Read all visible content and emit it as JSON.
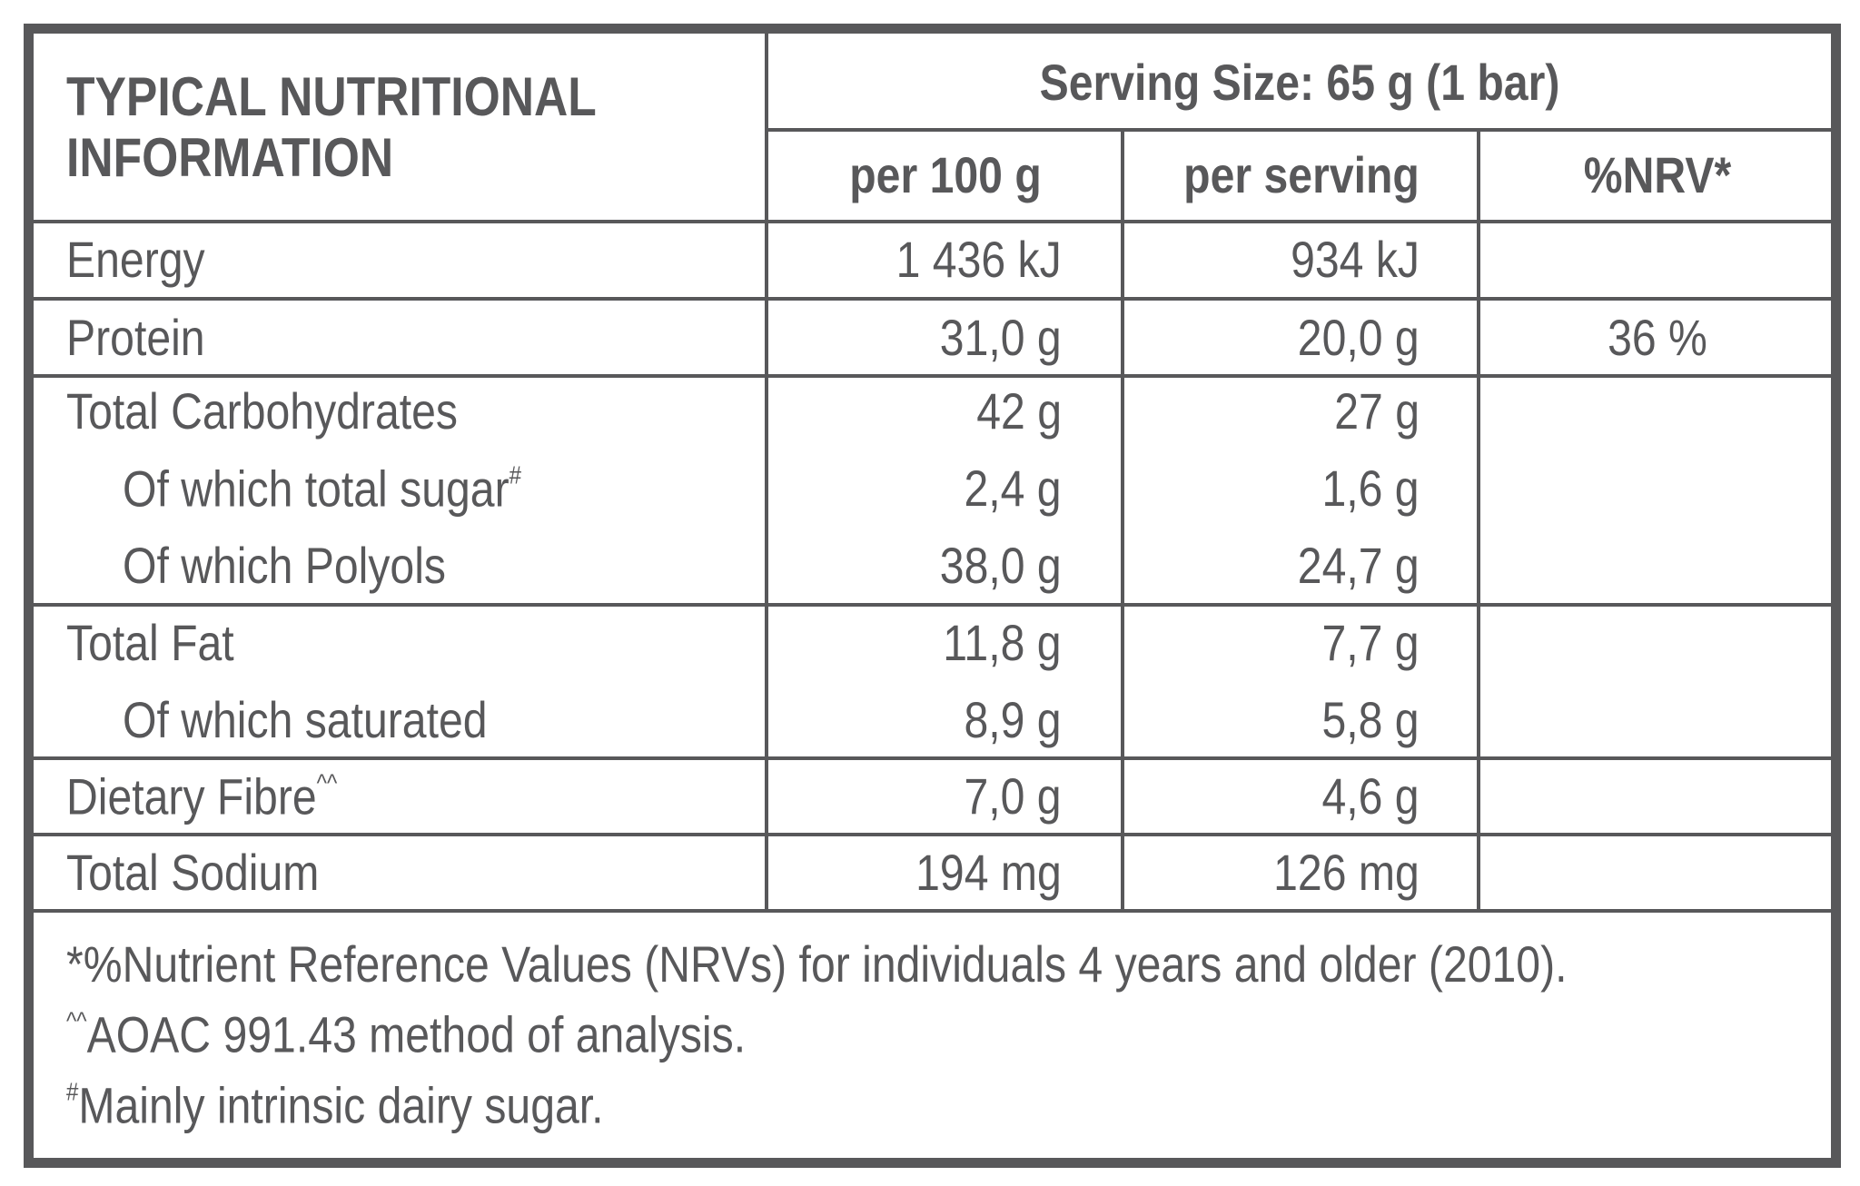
{
  "header": {
    "title_line1": "TYPICAL NUTRITIONAL",
    "title_line2": "INFORMATION",
    "serving_size": "Serving Size: 65 g (1 bar)",
    "columns": [
      "per 100 g",
      "per serving",
      "%NRV*"
    ]
  },
  "rows": [
    {
      "label": "Energy",
      "sup": "",
      "indent": false,
      "per100": "1 436 kJ",
      "serving": "934 kJ",
      "nrv": ""
    },
    {
      "label": "Protein",
      "sup": "",
      "indent": false,
      "per100": "31,0 g",
      "serving": "20,0 g",
      "nrv": "36 %"
    },
    {
      "label": "Total Carbohydrates",
      "sup": "",
      "indent": false,
      "per100": "42 g",
      "serving": "27 g",
      "nrv": ""
    },
    {
      "label": "Of which total sugar",
      "sup": "#",
      "indent": true,
      "per100": "2,4 g",
      "serving": "1,6 g",
      "nrv": ""
    },
    {
      "label": "Of which Polyols",
      "sup": "",
      "indent": true,
      "per100": "38,0 g",
      "serving": "24,7 g",
      "nrv": ""
    },
    {
      "label": "Total Fat",
      "sup": "",
      "indent": false,
      "per100": "11,8 g",
      "serving": "7,7 g",
      "nrv": ""
    },
    {
      "label": "Of which saturated",
      "sup": "",
      "indent": true,
      "per100": "8,9 g",
      "serving": "5,8 g",
      "nrv": ""
    },
    {
      "label": "Dietary Fibre",
      "sup": "^^",
      "indent": false,
      "per100": "7,0 g",
      "serving": "4,6 g",
      "nrv": ""
    },
    {
      "label": "Total Sodium",
      "sup": "",
      "indent": false,
      "per100": "194 mg",
      "serving": "126 mg",
      "nrv": ""
    }
  ],
  "footnotes": [
    {
      "sup": "",
      "text": "*%Nutrient Reference Values (NRVs) for individuals 4 years and older (2010)."
    },
    {
      "sup": "^^",
      "text": "AOAC 991.43 method of analysis."
    },
    {
      "sup": "#",
      "text": "Mainly intrinsic dairy sugar."
    }
  ],
  "colors": {
    "ink": "#58585a",
    "background": "#ffffff"
  }
}
